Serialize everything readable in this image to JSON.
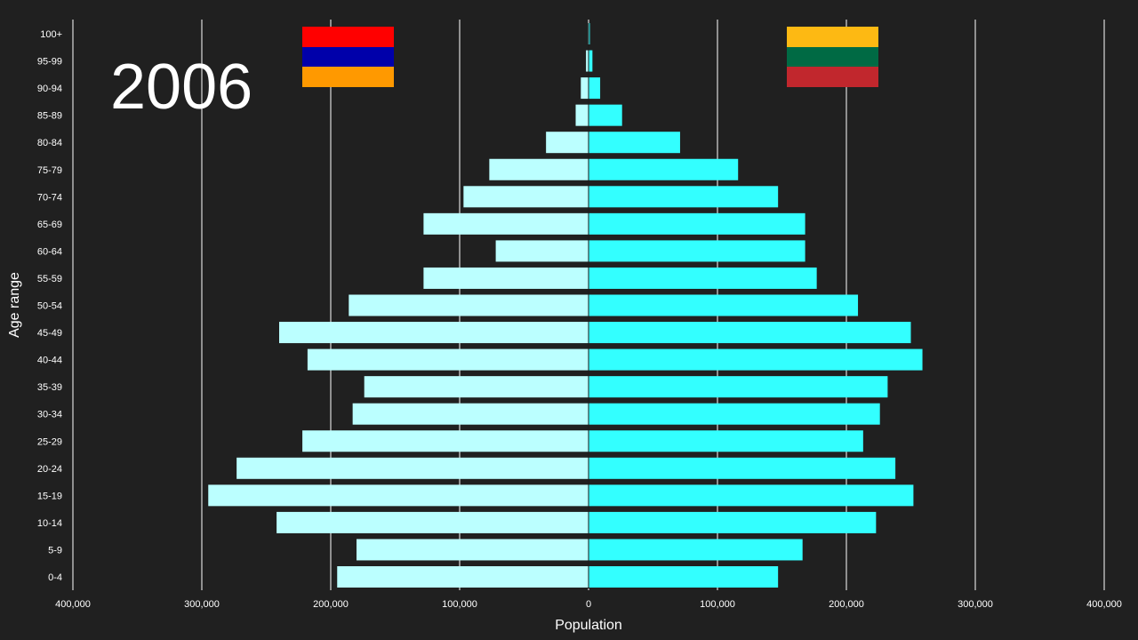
{
  "year": "2006",
  "flags": {
    "left": {
      "country": "Armenia",
      "stripes": [
        "#ff0000",
        "#0000aa",
        "#ff9900"
      ]
    },
    "right": {
      "country": "Lithuania",
      "stripes": [
        "#fdb913",
        "#006a44",
        "#c1272d"
      ]
    }
  },
  "chart_data": {
    "type": "bar",
    "orientation": "horizontal-population-pyramid",
    "xlabel": "Population",
    "ylabel": "Age range",
    "xlim": [
      -400000,
      400000
    ],
    "xticks": [
      -400000,
      -300000,
      -200000,
      -100000,
      0,
      100000,
      200000,
      300000,
      400000
    ],
    "xtick_labels": [
      "400,000",
      "300,000",
      "200,000",
      "100,000",
      "0",
      "100,000",
      "200,000",
      "300,000",
      "400,000"
    ],
    "grid": true,
    "categories": [
      "0-4",
      "5-9",
      "10-14",
      "15-19",
      "20-24",
      "25-29",
      "30-34",
      "35-39",
      "40-44",
      "45-49",
      "50-54",
      "55-59",
      "60-64",
      "65-69",
      "70-74",
      "75-79",
      "80-84",
      "85-89",
      "90-94",
      "95-99",
      "100+"
    ],
    "series": [
      {
        "side": "left",
        "color": "#bbffff",
        "values": [
          195000,
          180000,
          242000,
          295000,
          273000,
          222000,
          183000,
          174000,
          218000,
          240000,
          186000,
          128000,
          72000,
          128000,
          97000,
          77000,
          33000,
          10000,
          6000,
          2000,
          500
        ]
      },
      {
        "side": "right",
        "color": "#33ffff",
        "values": [
          147000,
          166000,
          223000,
          252000,
          238000,
          213000,
          226000,
          232000,
          259000,
          250000,
          209000,
          177000,
          168000,
          168000,
          147000,
          116000,
          71000,
          26000,
          9000,
          3000,
          1000
        ]
      }
    ]
  }
}
